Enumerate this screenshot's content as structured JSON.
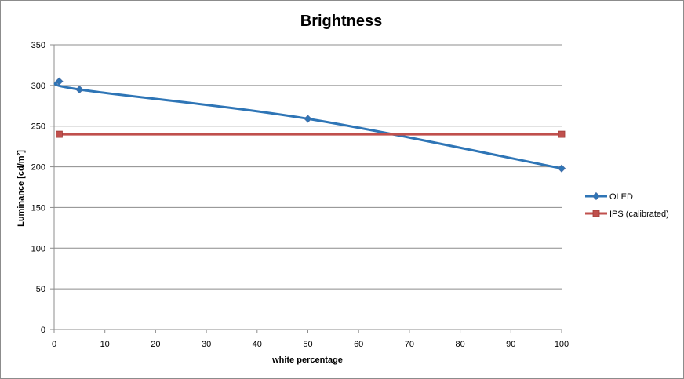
{
  "chart_data": {
    "type": "line",
    "title": "Brightness",
    "xlabel": "white percentage",
    "ylabel": "Luminance [cd/m²]",
    "xlim": [
      0,
      100
    ],
    "ylim": [
      0,
      350
    ],
    "x_ticks": [
      0,
      10,
      20,
      30,
      40,
      50,
      60,
      70,
      80,
      90,
      100
    ],
    "y_ticks": [
      0,
      50,
      100,
      150,
      200,
      250,
      300,
      350
    ],
    "grid": "horizontal",
    "legend_position": "right",
    "series": [
      {
        "name": "OLED",
        "color": "#2E75B6",
        "marker": "diamond",
        "smooth": true,
        "points": [
          {
            "x": 1,
            "y": 305
          },
          {
            "x": 5,
            "y": 295
          },
          {
            "x": 50,
            "y": 259
          },
          {
            "x": 100,
            "y": 198
          }
        ]
      },
      {
        "name": "IPS (calibrated)",
        "color": "#C0504D",
        "marker": "square",
        "smooth": false,
        "points": [
          {
            "x": 1,
            "y": 240
          },
          {
            "x": 100,
            "y": 240
          }
        ]
      }
    ]
  }
}
